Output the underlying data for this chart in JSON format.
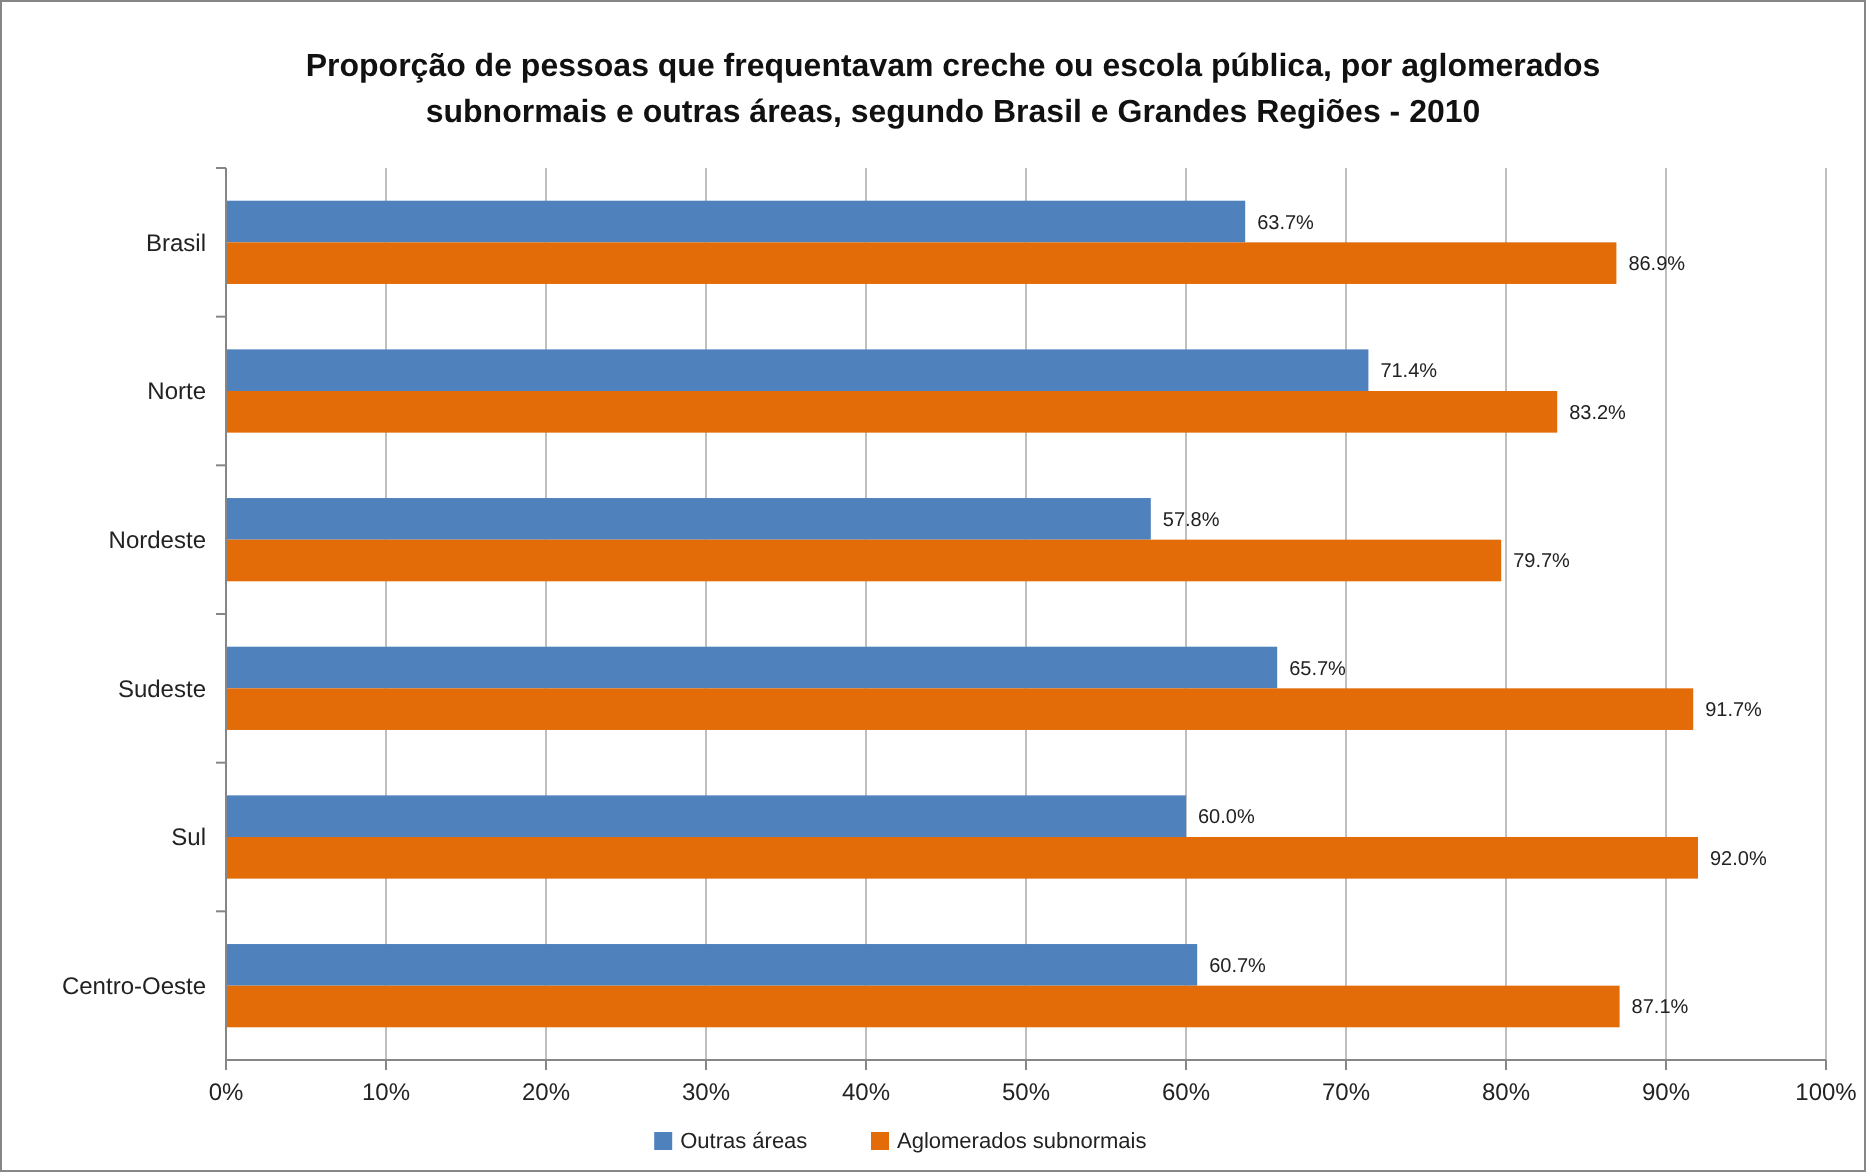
{
  "chart_data": {
    "type": "bar",
    "orientation": "horizontal",
    "title": "Proporção de pessoas que frequentavam creche ou escola pública, por aglomerados subnormais e outras áreas, segundo Brasil e Grandes Regiões - 2010",
    "categories": [
      "Brasil",
      "Norte",
      "Nordeste",
      "Sudeste",
      "Sul",
      "Centro-Oeste"
    ],
    "series": [
      {
        "name": "Outras áreas",
        "color": "#4f81bd",
        "values": [
          63.7,
          71.4,
          57.8,
          65.7,
          60.0,
          60.7
        ],
        "value_labels": [
          "63.7%",
          "71.4%",
          "57.8%",
          "65.7%",
          "60.0%",
          "60.7%"
        ]
      },
      {
        "name": "Aglomerados subnormais",
        "color": "#e36c09",
        "values": [
          86.9,
          83.2,
          79.7,
          91.7,
          92.0,
          87.1
        ],
        "value_labels": [
          "86.9%",
          "83.2%",
          "79.7%",
          "91.7%",
          "92.0%",
          "87.1%"
        ]
      }
    ],
    "xlim": [
      0,
      100
    ],
    "xticks": [
      {
        "value": 0,
        "label": "0%"
      },
      {
        "value": 10,
        "label": "10%"
      },
      {
        "value": 20,
        "label": "20%"
      },
      {
        "value": 30,
        "label": "30%"
      },
      {
        "value": 40,
        "label": "40%"
      },
      {
        "value": 50,
        "label": "50%"
      },
      {
        "value": 60,
        "label": "60%"
      },
      {
        "value": 70,
        "label": "70%"
      },
      {
        "value": 80,
        "label": "80%"
      },
      {
        "value": 90,
        "label": "90%"
      },
      {
        "value": 100,
        "label": "100%"
      }
    ],
    "grid": "x",
    "legend": "bottom"
  }
}
